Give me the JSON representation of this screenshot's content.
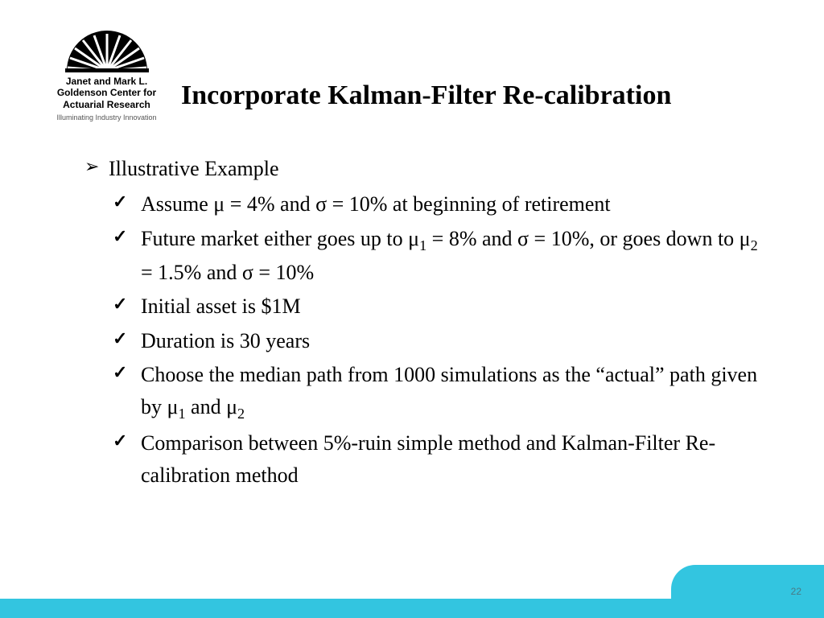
{
  "logo": {
    "line1": "Janet and Mark L.",
    "line2": "Goldenson Center for",
    "line3": "Actuarial Research",
    "tagline": "Illuminating Industry Innovation"
  },
  "title": "Incorporate Kalman-Filter Re-calibration",
  "bullets": {
    "heading": "Illustrative Example",
    "items": [
      "Assume μ = 4% and σ = 10% at beginning of retirement",
      "Future market either goes up to μ<sub>1</sub> = 8% and σ = 10%, or goes down to μ<sub>2</sub> = 1.5% and σ = 10%",
      "Initial asset is $1M",
      "Duration is 30 years",
      "Choose the median path from 1000 simulations as the “actual” path given by μ<sub>1</sub> and μ<sub>2</sub>",
      "Comparison between 5%-ruin simple method and Kalman-Filter Re-calibration method"
    ]
  },
  "pageNumber": "22",
  "colors": {
    "accent": "#33c5e0",
    "text": "#000000",
    "pageNum": "#4a7a85"
  }
}
